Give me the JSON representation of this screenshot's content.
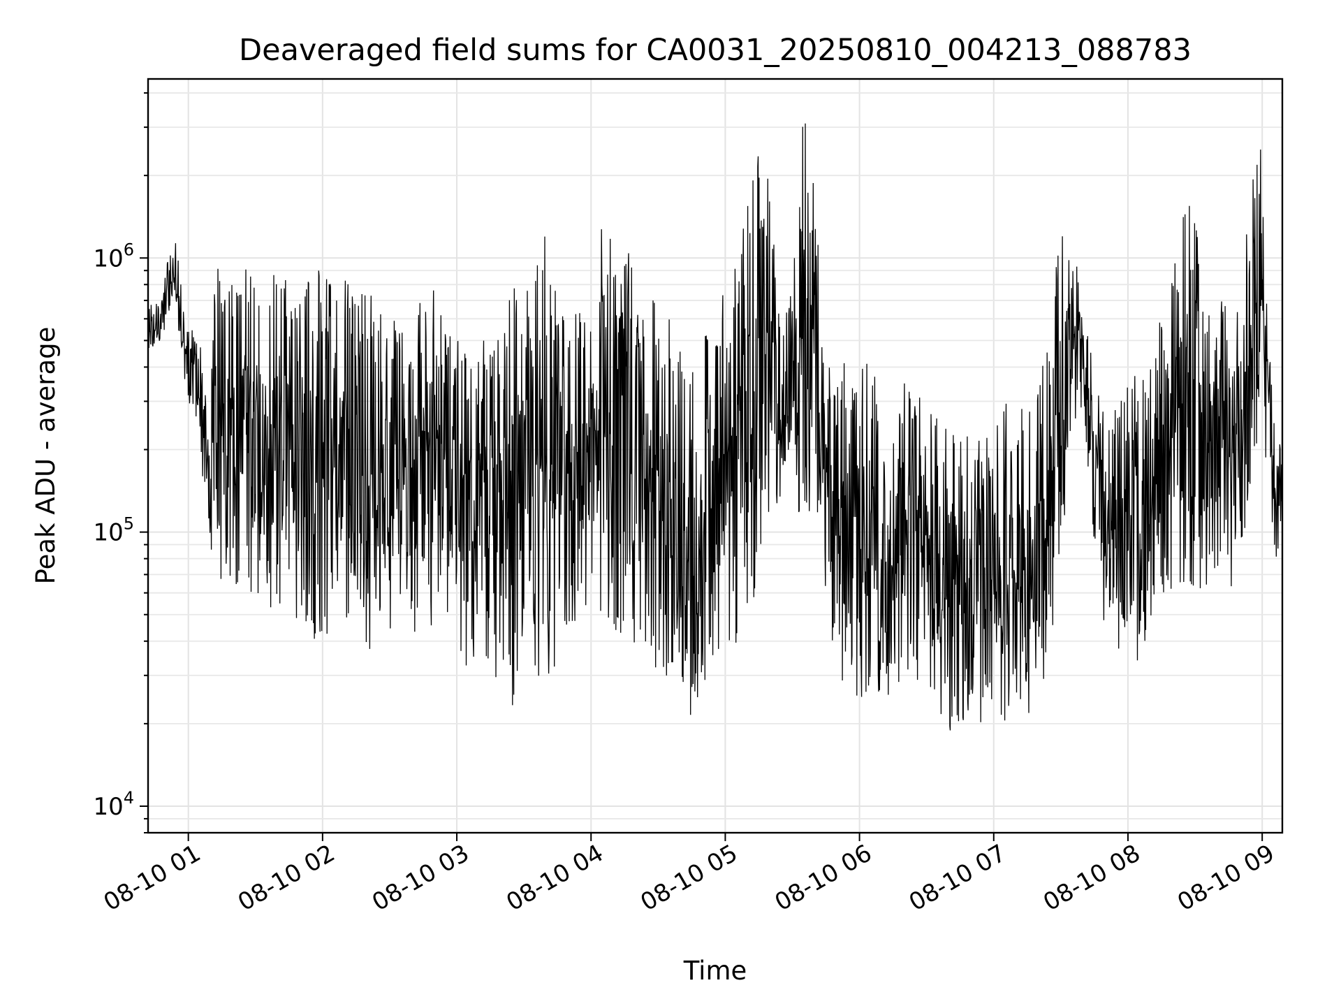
{
  "chart_data": {
    "type": "line",
    "title": "Deaveraged field sums for CA0031_20250810_004213_088783",
    "xlabel": "Time",
    "ylabel": "Peak ADU - average",
    "yscale": "log",
    "grid": true,
    "legend": "none",
    "line_color": "#000000",
    "xlim": [
      "2025-08-10 00:42",
      "2025-08-10 09:09"
    ],
    "ylim": [
      8000,
      4500000
    ],
    "x_ticks": [
      {
        "value": "2025-08-10 01:00",
        "label": "08-10 01"
      },
      {
        "value": "2025-08-10 02:00",
        "label": "08-10 02"
      },
      {
        "value": "2025-08-10 03:00",
        "label": "08-10 03"
      },
      {
        "value": "2025-08-10 04:00",
        "label": "08-10 04"
      },
      {
        "value": "2025-08-10 05:00",
        "label": "08-10 05"
      },
      {
        "value": "2025-08-10 06:00",
        "label": "08-10 06"
      },
      {
        "value": "2025-08-10 07:00",
        "label": "08-10 07"
      },
      {
        "value": "2025-08-10 08:00",
        "label": "08-10 08"
      },
      {
        "value": "2025-08-10 09:00",
        "label": "08-10 09"
      }
    ],
    "y_ticks": [
      {
        "value": 10000,
        "base": "10",
        "exp": "4"
      },
      {
        "value": 100000,
        "base": "10",
        "exp": "5"
      },
      {
        "value": 1000000,
        "base": "10",
        "exp": "6"
      }
    ],
    "series": [
      {
        "x": [
          "2025-08-10 00:42",
          "2025-08-10 00:45",
          "2025-08-10 00:48",
          "2025-08-10 00:51",
          "2025-08-10 00:54",
          "2025-08-10 00:57",
          "2025-08-10 01:00",
          "2025-08-10 01:04",
          "2025-08-10 01:07",
          "2025-08-10 01:10",
          "2025-08-10 01:13",
          "2025-08-10 01:17",
          "2025-08-10 01:20",
          "2025-08-10 01:25",
          "2025-08-10 01:30",
          "2025-08-10 01:35",
          "2025-08-10 01:40",
          "2025-08-10 01:45",
          "2025-08-10 01:50",
          "2025-08-10 01:55",
          "2025-08-10 02:00",
          "2025-08-10 02:05",
          "2025-08-10 02:10",
          "2025-08-10 02:15",
          "2025-08-10 02:20",
          "2025-08-10 02:25",
          "2025-08-10 02:30",
          "2025-08-10 02:35",
          "2025-08-10 02:40",
          "2025-08-10 02:45",
          "2025-08-10 02:50",
          "2025-08-10 02:55",
          "2025-08-10 03:00",
          "2025-08-10 03:05",
          "2025-08-10 03:10",
          "2025-08-10 03:15",
          "2025-08-10 03:20",
          "2025-08-10 03:25",
          "2025-08-10 03:30",
          "2025-08-10 03:35",
          "2025-08-10 03:40",
          "2025-08-10 03:45",
          "2025-08-10 03:50",
          "2025-08-10 03:55",
          "2025-08-10 04:00",
          "2025-08-10 04:05",
          "2025-08-10 04:10",
          "2025-08-10 04:15",
          "2025-08-10 04:20",
          "2025-08-10 04:25",
          "2025-08-10 04:30",
          "2025-08-10 04:35",
          "2025-08-10 04:40",
          "2025-08-10 04:45",
          "2025-08-10 04:50",
          "2025-08-10 04:55",
          "2025-08-10 05:00",
          "2025-08-10 05:05",
          "2025-08-10 05:10",
          "2025-08-10 05:15",
          "2025-08-10 05:20",
          "2025-08-10 05:25",
          "2025-08-10 05:30",
          "2025-08-10 05:35",
          "2025-08-10 05:40",
          "2025-08-10 05:45",
          "2025-08-10 05:50",
          "2025-08-10 05:55",
          "2025-08-10 06:00",
          "2025-08-10 06:05",
          "2025-08-10 06:10",
          "2025-08-10 06:15",
          "2025-08-10 06:20",
          "2025-08-10 06:25",
          "2025-08-10 06:30",
          "2025-08-10 06:35",
          "2025-08-10 06:40",
          "2025-08-10 06:45",
          "2025-08-10 06:50",
          "2025-08-10 06:55",
          "2025-08-10 07:00",
          "2025-08-10 07:05",
          "2025-08-10 07:10",
          "2025-08-10 07:15",
          "2025-08-10 07:20",
          "2025-08-10 07:25",
          "2025-08-10 07:30",
          "2025-08-10 07:35",
          "2025-08-10 07:40",
          "2025-08-10 07:45",
          "2025-08-10 07:50",
          "2025-08-10 07:55",
          "2025-08-10 08:00",
          "2025-08-10 08:05",
          "2025-08-10 08:10",
          "2025-08-10 08:15",
          "2025-08-10 08:20",
          "2025-08-10 08:25",
          "2025-08-10 08:30",
          "2025-08-10 08:35",
          "2025-08-10 08:40",
          "2025-08-10 08:45",
          "2025-08-10 08:50",
          "2025-08-10 08:55",
          "2025-08-10 09:00",
          "2025-08-10 09:03",
          "2025-08-10 09:06",
          "2025-08-10 09:09"
        ],
        "low": [
          460000,
          480000,
          500000,
          620000,
          700000,
          380000,
          300000,
          250000,
          130000,
          80000,
          60000,
          50000,
          45000,
          50000,
          48000,
          50000,
          50000,
          48000,
          45000,
          40000,
          35000,
          38000,
          40000,
          38000,
          35000,
          40000,
          38000,
          45000,
          40000,
          45000,
          40000,
          45000,
          40000,
          30000,
          32000,
          28000,
          24000,
          22000,
          25000,
          28000,
          30000,
          32000,
          35000,
          38000,
          40000,
          45000,
          38000,
          40000,
          35000,
          32000,
          30000,
          28000,
          26000,
          20000,
          25000,
          35000,
          40000,
          38000,
          55000,
          60000,
          120000,
          130000,
          140000,
          100000,
          80000,
          50000,
          30000,
          25000,
          25000,
          24000,
          22000,
          26000,
          28000,
          30000,
          22000,
          20000,
          16000,
          18000,
          20000,
          20000,
          22000,
          20000,
          22000,
          22000,
          20000,
          40000,
          60000,
          200000,
          300000,
          80000,
          40000,
          35000,
          40000,
          30000,
          45000,
          55000,
          60000,
          50000,
          55000,
          60000,
          65000,
          60000,
          70000,
          150000,
          250000,
          120000,
          80000,
          90000
        ],
        "high": [
          680000,
          700000,
          720000,
          1000000,
          1200000,
          800000,
          700000,
          500000,
          450000,
          420000,
          1300000,
          900000,
          950000,
          950000,
          980000,
          900000,
          950000,
          900000,
          850000,
          900000,
          950000,
          900000,
          900000,
          850000,
          800000,
          700000,
          600000,
          600000,
          600000,
          800000,
          800000,
          600000,
          500000,
          500000,
          500000,
          500000,
          750000,
          800000,
          750000,
          900000,
          1400000,
          700000,
          600000,
          700000,
          800000,
          1400000,
          1300000,
          1200000,
          900000,
          800000,
          700000,
          600000,
          500000,
          400000,
          500000,
          600000,
          800000,
          1000000,
          2000000,
          2800000,
          1800000,
          600000,
          800000,
          3400000,
          2200000,
          500000,
          450000,
          400000,
          450000,
          420000,
          400000,
          420000,
          400000,
          380000,
          350000,
          300000,
          250000,
          230000,
          220000,
          220000,
          250000,
          300000,
          300000,
          280000,
          350000,
          600000,
          1600000,
          1200000,
          700000,
          400000,
          300000,
          300000,
          350000,
          400000,
          600000,
          700000,
          900000,
          2000000,
          1500000,
          800000,
          700000,
          700000,
          1000000,
          1800000,
          2800000,
          500000,
          250000,
          200000
        ]
      }
    ]
  }
}
